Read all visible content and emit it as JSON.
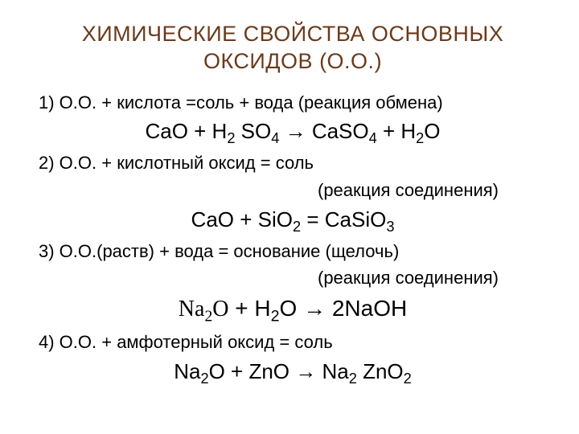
{
  "title_color": "#6b3a1a",
  "text_color": "#000000",
  "background_color": "#ffffff",
  "font_family": "Arial",
  "title": "ХИМИЧЕСКИЕ СВОЙСТВА ОСНОВНЫХ ОКСИДОВ (О.О.)",
  "rule1": "1) О.О. + кислота =соль + вода (реакция обмена)",
  "eq1_html": "CaO + H<sub>2</sub> SO<sub>4</sub> → CaSO<sub>4</sub> + H<sub>2</sub>O",
  "rule2": "2) О.О. + кислотный оксид = соль",
  "note2": "(реакция соединения)",
  "eq2_html": "CaO + SiO<sub>2</sub> = CaSiO<sub>3</sub>",
  "rule3": "3) О.О.(раств) + вода = основание (щелочь)",
  "note3": "(реакция соединения)",
  "eq3_html": "<span class=\"na-italic\">Na<sub>2</sub>O</span> + H<sub>2</sub>O → 2NaOH",
  "rule4": "4) О.О. + амфотерный оксид = соль",
  "eq4_html": "Na<sub>2</sub>O + ZnO → Na<sub>2</sub> ZnO<sub>2</sub>"
}
